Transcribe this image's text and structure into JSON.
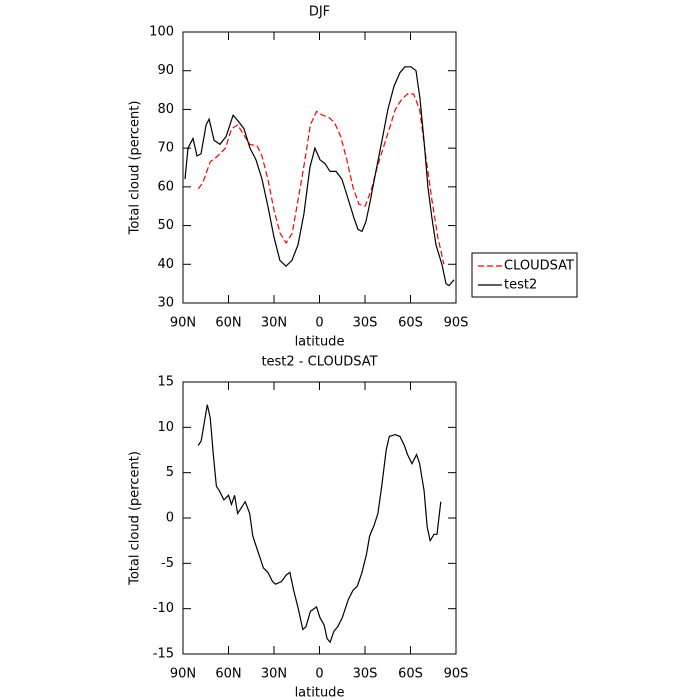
{
  "chart_data": [
    {
      "type": "line",
      "title": "DJF",
      "xlabel": "latitude",
      "ylabel": "Total cloud (percent)",
      "xlim": [
        90,
        -90
      ],
      "xticks": [
        {
          "value": 90,
          "label": "90N"
        },
        {
          "value": 60,
          "label": "60N"
        },
        {
          "value": 30,
          "label": "30N"
        },
        0,
        {
          "value": -30,
          "label": "30S"
        },
        {
          "value": -60,
          "label": "60S"
        },
        {
          "value": -90,
          "label": "90S"
        }
      ],
      "ylim": [
        30,
        100
      ],
      "yticks": [
        30,
        40,
        50,
        60,
        70,
        80,
        90,
        100
      ],
      "legend": "right",
      "series": [
        {
          "name": "CLOUDSAT",
          "color": "#ff0000",
          "dash": true,
          "x": [
            80,
            77,
            72,
            67,
            62,
            58,
            54,
            50,
            46,
            41,
            38,
            34,
            30,
            26,
            22,
            18,
            14,
            10,
            6,
            2,
            -2,
            -6,
            -10,
            -14,
            -18,
            -22,
            -26,
            -30,
            -34,
            -38,
            -42,
            -46,
            -50,
            -54,
            -58,
            -62,
            -66,
            -70,
            -74,
            -78,
            -82
          ],
          "values": [
            59.5,
            61,
            66.5,
            68,
            70,
            75,
            76,
            73.5,
            71,
            70.5,
            68,
            62,
            54,
            48,
            45.5,
            48,
            57,
            66,
            76,
            79.5,
            78.5,
            78,
            76.5,
            73,
            67,
            60,
            55.5,
            55,
            59,
            65,
            70,
            75,
            80,
            82.5,
            84,
            84,
            80,
            68,
            57,
            47,
            40
          ]
        },
        {
          "name": "test2",
          "color": "#000000",
          "dash": false,
          "x": [
            88.7,
            86.7,
            83.4,
            80.8,
            78.1,
            74.8,
            72.8,
            69.5,
            65.6,
            61.6,
            57,
            53.7,
            49.8,
            45.8,
            41.9,
            37.9,
            34,
            30,
            26.1,
            22.1,
            18.2,
            14.2,
            10.3,
            6.3,
            3,
            -0.3,
            -3.6,
            -6.9,
            -10.9,
            -14.8,
            -18.8,
            -22.7,
            -25.4,
            -28,
            -30.6,
            -33.3,
            -37.2,
            -41.2,
            -45.1,
            -49.1,
            -53,
            -56.3,
            -60.3,
            -63.6,
            -66.2,
            -68.9,
            -71.5,
            -74.1,
            -76.8,
            -80.7,
            -83.4,
            -85.4,
            -88.7
          ],
          "values": [
            62,
            70,
            72.5,
            68,
            68.5,
            76,
            77.5,
            72,
            71,
            73,
            78.5,
            77,
            75,
            70,
            67,
            62,
            55,
            47,
            41,
            39.5,
            41,
            45,
            53,
            65,
            70,
            67,
            66,
            64,
            64,
            62,
            57,
            52,
            49,
            48.5,
            51,
            56,
            64,
            72,
            80,
            86,
            89.5,
            91,
            91,
            90,
            83,
            72,
            60,
            52,
            45,
            40,
            35,
            34.5,
            36
          ]
        }
      ]
    },
    {
      "type": "line",
      "title": "test2 - CLOUDSAT",
      "xlabel": "latitude",
      "ylabel": "Total cloud (percent)",
      "xlim": [
        90,
        -90
      ],
      "xticks": [
        {
          "value": 90,
          "label": "90N"
        },
        {
          "value": 60,
          "label": "60N"
        },
        {
          "value": 30,
          "label": "30N"
        },
        0,
        {
          "value": -30,
          "label": "30S"
        },
        {
          "value": -60,
          "label": "60S"
        },
        {
          "value": -90,
          "label": "90S"
        }
      ],
      "ylim": [
        -15,
        15
      ],
      "yticks": [
        -15,
        -10,
        -5,
        0,
        5,
        10,
        15
      ],
      "series": [
        {
          "color": "#000000",
          "dash": false,
          "x": [
            80,
            78,
            74,
            72,
            70,
            68,
            66,
            63,
            60,
            58,
            56,
            54,
            52,
            49,
            46,
            44,
            42,
            39,
            37,
            34,
            31,
            29,
            25,
            22,
            19.5,
            17,
            14,
            11,
            9,
            6,
            2,
            -0.3,
            -3,
            -5,
            -7,
            -9.5,
            -12,
            -15,
            -19,
            -22,
            -25,
            -28,
            -31,
            -33,
            -36,
            -38.5,
            -41,
            -44,
            -46,
            -50,
            -53,
            -56,
            -58,
            -61,
            -64,
            -66,
            -69,
            -71,
            -73,
            -75.5,
            -77.5,
            -80
          ],
          "values": [
            8,
            8.5,
            12.5,
            11,
            7,
            3.5,
            3,
            2,
            2.5,
            1.5,
            2.5,
            0.5,
            1,
            1.8,
            0.5,
            -2,
            -3,
            -4.5,
            -5.5,
            -6,
            -7,
            -7.3,
            -7,
            -6.3,
            -6,
            -8,
            -10,
            -12.3,
            -12,
            -10.3,
            -9.8,
            -11,
            -11.8,
            -13.3,
            -13.7,
            -12.5,
            -12,
            -11,
            -9,
            -8,
            -7.5,
            -6,
            -4,
            -2,
            -0.8,
            0.5,
            3.5,
            7.5,
            9,
            9.2,
            9,
            8,
            7,
            6,
            7,
            6,
            3,
            -1,
            -2.5,
            -1.8,
            -1.8,
            1.8
          ]
        }
      ]
    }
  ]
}
